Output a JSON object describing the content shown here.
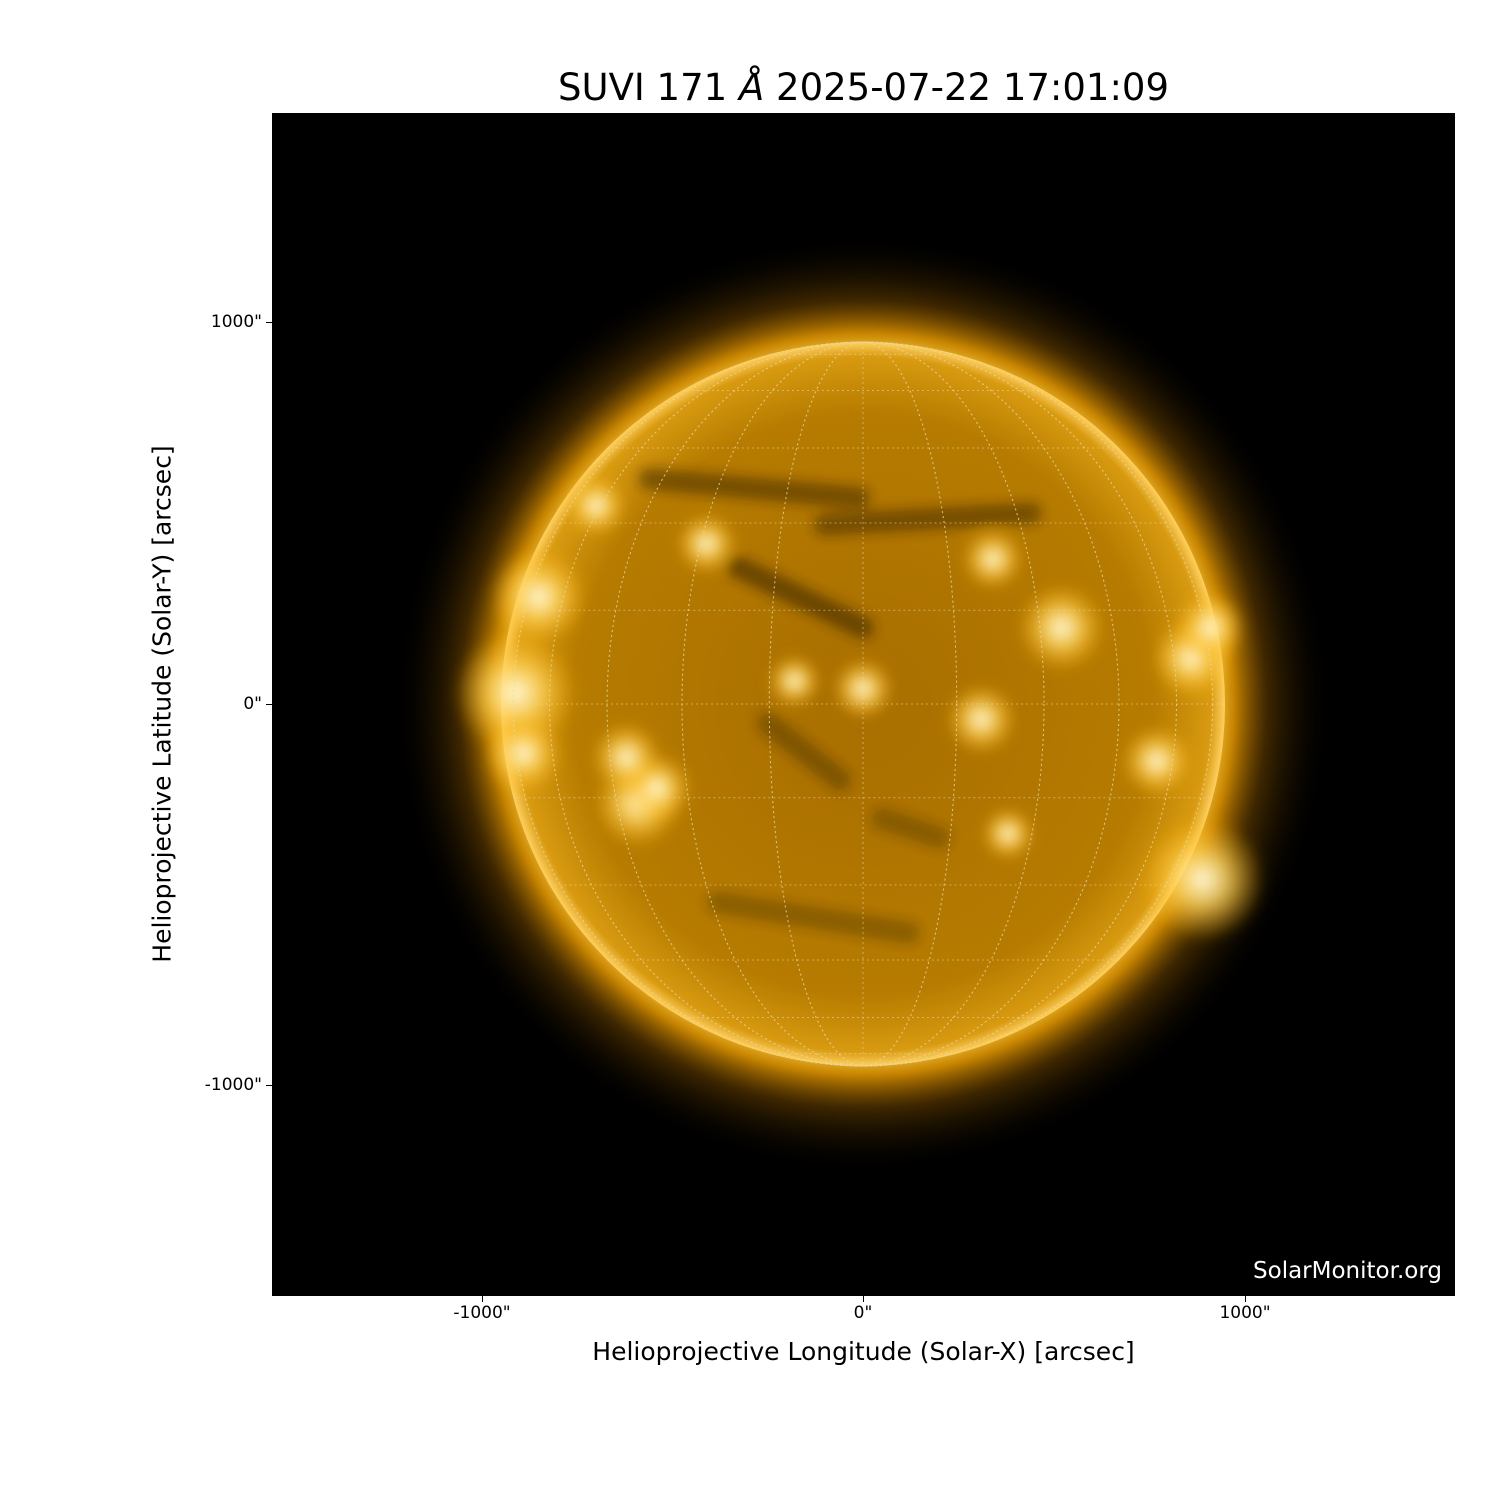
{
  "title": {
    "instrument": "SUVI 171",
    "unit": "Å",
    "datetime": "2025-07-22 17:01:09"
  },
  "watermark": "SolarMonitor.org",
  "axes": {
    "xlabel": "Helioprojective Longitude (Solar-X) [arcsec]",
    "ylabel": "Helioprojective Latitude (Solar-Y) [arcsec]",
    "xticks": [
      "-1000\"",
      "0\"",
      "1000\""
    ],
    "yticks": [
      "1000\"",
      "0\"",
      "-1000\""
    ],
    "xtick_values": [
      -1000,
      0,
      1000
    ],
    "ytick_values": [
      1000,
      0,
      -1000
    ],
    "xlim": [
      -1550,
      1550
    ],
    "ylim": [
      -1550,
      1550
    ]
  },
  "image": {
    "colormap": "sdo-aia-171 gold",
    "solar_radius_arcsec": 946,
    "grid_spacing_deg": 15,
    "colors": {
      "background": "#000000",
      "disk": "#c98a00",
      "bright": "#fff2b0",
      "dark": "#3a2600"
    }
  }
}
